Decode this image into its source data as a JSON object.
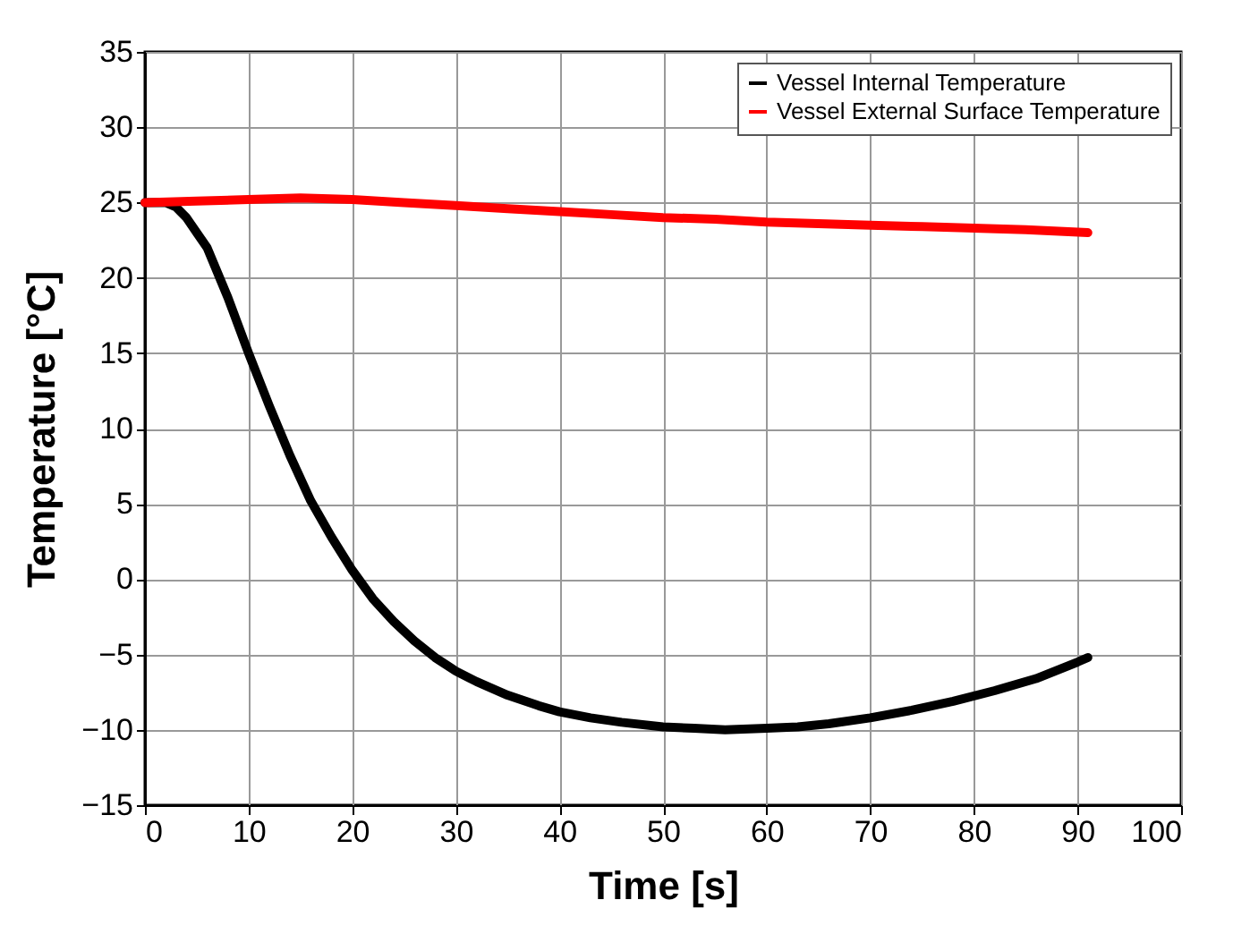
{
  "chart_data": {
    "type": "line",
    "xlabel": "Time [s]",
    "ylabel": "Temperature [°C]",
    "xlim": [
      0,
      100
    ],
    "xticks": [
      0,
      10,
      20,
      30,
      40,
      50,
      60,
      70,
      80,
      90,
      100
    ],
    "ylim": [
      -15,
      35
    ],
    "yticks": [
      -15,
      -10,
      -5,
      0,
      5,
      10,
      15,
      20,
      25,
      30,
      35
    ],
    "grid": true,
    "legend": "top right",
    "series": [
      {
        "name": "Vessel Internal Temperature",
        "color": "#000000",
        "x": [
          0,
          2,
          3,
          4,
          5,
          6,
          8,
          10,
          12,
          14,
          16,
          18,
          20,
          22,
          24,
          26,
          28,
          30,
          32,
          35,
          38,
          40,
          43,
          46,
          50,
          53,
          56,
          60,
          63,
          66,
          70,
          74,
          78,
          82,
          86,
          90,
          91
        ],
        "values": [
          25,
          25,
          24.7,
          24,
          23,
          22,
          18.7,
          15,
          11.5,
          8.2,
          5.2,
          2.8,
          0.6,
          -1.3,
          -2.8,
          -4.1,
          -5.2,
          -6.1,
          -6.8,
          -7.7,
          -8.4,
          -8.8,
          -9.2,
          -9.5,
          -9.8,
          -9.9,
          -10,
          -9.9,
          -9.8,
          -9.6,
          -9.2,
          -8.7,
          -8.1,
          -7.4,
          -6.6,
          -5.5,
          -5.2
        ]
      },
      {
        "name": "Vessel External Surface Temperature",
        "color": "#ff0000",
        "x": [
          0,
          5,
          10,
          15,
          20,
          25,
          30,
          35,
          40,
          45,
          50,
          55,
          60,
          65,
          70,
          75,
          80,
          85,
          91
        ],
        "values": [
          25,
          25.1,
          25.2,
          25.3,
          25.2,
          25,
          24.8,
          24.6,
          24.4,
          24.2,
          24,
          23.9,
          23.7,
          23.6,
          23.5,
          23.4,
          23.3,
          23.2,
          23
        ]
      }
    ]
  }
}
